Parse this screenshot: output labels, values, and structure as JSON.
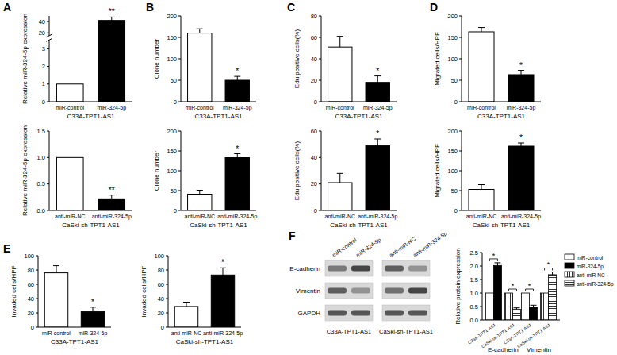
{
  "panel_labels": [
    "A",
    "B",
    "C",
    "D",
    "E",
    "F"
  ],
  "blot": {
    "lanes": [
      "miR-control",
      "miR-324-5p",
      "anti-miR-NC",
      "anti-miR-324-5p"
    ],
    "proteins": [
      "E-cadherin",
      "Vimentin",
      "GAPDH"
    ],
    "cell_lines": [
      "C33A-TPT1-AS1",
      "CaSki-sh-TPT1-AS1"
    ]
  },
  "chart_data": [
    {
      "type": "bar",
      "y_label": "Relative miR-324-5p expression",
      "x_label": "C33A-TPT1-AS1",
      "categories": [
        "miR-control",
        "miR-324-5p"
      ],
      "values": [
        1,
        42
      ],
      "errors": [
        null,
        6
      ],
      "colors": [
        "#ffffff",
        "#000000"
      ],
      "ylim": [
        0,
        50
      ],
      "y_break": [
        3.5,
        15
      ],
      "yticks": [
        0,
        1,
        2,
        3,
        20,
        40
      ],
      "annotation": "**"
    },
    {
      "type": "bar",
      "y_label": "Relative miR-324-5p expression",
      "x_label": "CaSki-sh-TPT1-AS1",
      "categories": [
        "anti-miR-NC",
        "anti-miR-324-5p"
      ],
      "values": [
        1,
        0.22
      ],
      "errors": [
        null,
        0.07
      ],
      "colors": [
        "#ffffff",
        "#000000"
      ],
      "ylim": [
        0,
        1.5
      ],
      "yticks": [
        {
          "value": 0,
          "label": "0.0"
        },
        {
          "value": 0.5,
          "label": "0.5"
        },
        {
          "value": 1,
          "label": "1.0"
        },
        {
          "value": 1.5,
          "label": "1.5"
        }
      ],
      "annotation": "**"
    },
    {
      "type": "bar",
      "y_label": "Clone number",
      "x_label": "C33A-TPT1-AS1",
      "categories": [
        "miR-control",
        "miR-324-5p"
      ],
      "values": [
        160,
        50
      ],
      "errors": [
        10,
        9
      ],
      "colors": [
        "#ffffff",
        "#000000"
      ],
      "ylim": [
        0,
        200
      ],
      "yticks": [
        0,
        50,
        100,
        150,
        200
      ],
      "annotation": "*"
    },
    {
      "type": "bar",
      "y_label": "Clone number",
      "x_label": "CaSki-sh-TPT1-AS1",
      "categories": [
        "anti-miR-NC",
        "anti-miR-324-5p"
      ],
      "values": [
        41,
        133
      ],
      "errors": [
        10,
        10
      ],
      "colors": [
        "#ffffff",
        "#000000"
      ],
      "ylim": [
        0,
        200
      ],
      "yticks": [
        0,
        50,
        100,
        150,
        200
      ],
      "annotation": "*"
    },
    {
      "type": "bar",
      "y_label": "Edu positive cells(%)",
      "x_label": "C33A-TPT1-AS1",
      "categories": [
        "miR-control",
        "miR-324-5p"
      ],
      "values": [
        51,
        18
      ],
      "errors": [
        10,
        6
      ],
      "colors": [
        "#ffffff",
        "#000000"
      ],
      "ylim": [
        0,
        80
      ],
      "yticks": [
        0,
        20,
        40,
        60,
        80
      ],
      "annotation": "*"
    },
    {
      "type": "bar",
      "y_label": "Edu positive cells(%)",
      "x_label": "CaSki-sh-TPT1-AS1",
      "categories": [
        "anti-miR-NC",
        "anti-miR-324-5p"
      ],
      "values": [
        21,
        49
      ],
      "errors": [
        7,
        5
      ],
      "colors": [
        "#ffffff",
        "#000000"
      ],
      "ylim": [
        0,
        60
      ],
      "yticks": [
        0,
        20,
        40,
        60
      ],
      "annotation": "*"
    },
    {
      "type": "bar",
      "y_label": "Migrated cells/HPF",
      "x_label": "C33A-TPT1-AS1",
      "categories": [
        "miR-control",
        "miR-324-5p"
      ],
      "values": [
        163,
        63
      ],
      "errors": [
        10,
        10
      ],
      "colors": [
        "#ffffff",
        "#000000"
      ],
      "ylim": [
        0,
        200
      ],
      "yticks": [
        0,
        50,
        100,
        150,
        200
      ],
      "annotation": "*"
    },
    {
      "type": "bar",
      "y_label": "Migrated cells/HPF",
      "x_label": "CaSki-sh-TPT1-AS1",
      "categories": [
        "anti-miR-NC",
        "anti-miR-324-5p"
      ],
      "values": [
        53,
        162
      ],
      "errors": [
        12,
        8
      ],
      "colors": [
        "#ffffff",
        "#000000"
      ],
      "ylim": [
        0,
        200
      ],
      "yticks": [
        0,
        50,
        100,
        150,
        200
      ],
      "annotation": "*"
    },
    {
      "type": "bar",
      "y_label": "Invaded cells/HPF",
      "x_label": "C33A-TPT1-AS1",
      "categories": [
        "miR-control",
        "miR-324-5p"
      ],
      "values": [
        76,
        22
      ],
      "errors": [
        10,
        6
      ],
      "colors": [
        "#ffffff",
        "#000000"
      ],
      "ylim": [
        0,
        100
      ],
      "yticks": [
        0,
        20,
        40,
        60,
        80,
        100
      ],
      "annotation": "*"
    },
    {
      "type": "bar",
      "y_label": "Invaded cells/HPF",
      "x_label": "CaSki-sh-TPT1-AS1",
      "categories": [
        "anti-miR-NC",
        "anti-miR-324-5p"
      ],
      "values": [
        29,
        73
      ],
      "errors": [
        6,
        10
      ],
      "colors": [
        "#ffffff",
        "#000000"
      ],
      "ylim": [
        0,
        100
      ],
      "yticks": [
        0,
        20,
        40,
        60,
        80,
        100
      ],
      "annotation": "*"
    },
    {
      "type": "bar",
      "y_label": "Relative protein expression",
      "categories": [
        "E-cadherin",
        "Vimentin"
      ],
      "group_sublabels": [
        "C33A-TPT1-AS1",
        "CaSki-sh-TPT1-AS1"
      ],
      "series": [
        {
          "name": "miR-control",
          "color": "#ffffff",
          "values": [
            1,
            1
          ],
          "errors": [
            null,
            null
          ]
        },
        {
          "name": "miR-324-5p",
          "color": "#000000",
          "values": [
            2.02,
            0.47
          ],
          "errors": [
            0.1,
            0.08
          ]
        },
        {
          "name": "anti-miR-NC",
          "color": "#ffffff",
          "values": [
            1,
            1
          ],
          "errors": [
            null,
            null
          ]
        },
        {
          "name": "anti-miR-324-5p",
          "color": "#ffffff",
          "values": [
            0.4,
            1.68
          ],
          "errors": [
            0.05,
            0.1
          ]
        }
      ],
      "ylim": [
        0,
        2.5
      ],
      "yticks": [
        {
          "value": 0,
          "label": "0.0"
        },
        {
          "value": 0.5,
          "label": "0.5"
        },
        {
          "value": 1,
          "label": "1.0"
        },
        {
          "value": 1.5,
          "label": "1.5"
        },
        {
          "value": 2,
          "label": "2.0"
        },
        {
          "value": 2.5,
          "label": "2.5"
        }
      ],
      "annotations": [
        "*",
        "*",
        "*",
        "*"
      ],
      "legend": "right"
    }
  ]
}
